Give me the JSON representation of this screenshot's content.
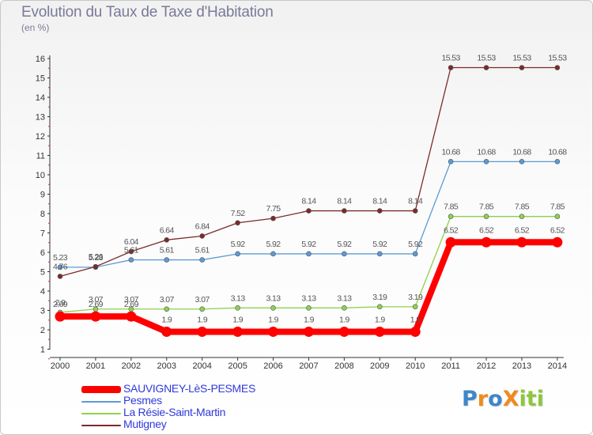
{
  "title": "Evolution du Taux de Taxe d'Habitation",
  "unit_label": "(en %)",
  "logo_text": "ProXiti",
  "colors": {
    "axis": "#333333",
    "grid": "#dddddd"
  },
  "chart_data": {
    "type": "line",
    "title": "Evolution du Taux de Taxe d'Habitation",
    "ylabel": "(en %)",
    "xlabel": "",
    "x": [
      "2000",
      "2001",
      "2002",
      "2003",
      "2004",
      "2005",
      "2006",
      "2007",
      "2008",
      "2009",
      "2010",
      "2011",
      "2012",
      "2013",
      "2014"
    ],
    "ylim": [
      0,
      16
    ],
    "yticks": [
      "1",
      "2",
      "3",
      "4",
      "5",
      "6",
      "7",
      "8",
      "9",
      "10",
      "11",
      "12",
      "13",
      "14",
      "15",
      "16"
    ],
    "grid": false,
    "legend_position": "bottom-left",
    "series": [
      {
        "name": "SAUVIGNEY-LèS-PESMES",
        "color": "#ff0000",
        "values": [
          2.69,
          2.69,
          2.69,
          1.9,
          1.9,
          1.9,
          1.9,
          1.9,
          1.9,
          1.9,
          1.9,
          6.52,
          6.52,
          6.52,
          6.52
        ],
        "labels": [
          "2.69",
          "2.69",
          "2.69",
          "1.9",
          "1.9",
          "1.9",
          "1.9",
          "1.9",
          "1.9",
          "1.9",
          "1.9",
          "6.52",
          "6.52",
          "6.52",
          "6.52"
        ]
      },
      {
        "name": "Pesmes",
        "color": "#5b9bd5",
        "values": [
          5.23,
          5.23,
          5.61,
          5.61,
          5.61,
          5.92,
          5.92,
          5.92,
          5.92,
          5.92,
          5.92,
          10.68,
          10.68,
          10.68,
          10.68
        ],
        "labels": [
          "5.23",
          "5.23",
          "5.61",
          "5.61",
          "5.61",
          "5.92",
          "5.92",
          "5.92",
          "5.92",
          "5.92",
          "5.92",
          "10.68",
          "10.68",
          "10.68",
          "10.68"
        ]
      },
      {
        "name": "La Résie-Saint-Martin",
        "color": "#8fd14f",
        "values": [
          2.9,
          3.07,
          3.07,
          3.07,
          3.07,
          3.13,
          3.13,
          3.13,
          3.13,
          3.19,
          3.19,
          7.85,
          7.85,
          7.85,
          7.85
        ],
        "labels": [
          "2.9",
          "3.07",
          "3.07",
          "3.07",
          "3.07",
          "3.13",
          "3.13",
          "3.13",
          "3.13",
          "3.19",
          "3.19",
          "7.85",
          "7.85",
          "7.85",
          "7.85"
        ]
      },
      {
        "name": "Mutigney",
        "color": "#7b2a2a",
        "values": [
          4.76,
          5.26,
          6.04,
          6.64,
          6.84,
          7.52,
          7.75,
          8.14,
          8.14,
          8.14,
          8.14,
          15.53,
          15.53,
          15.53,
          15.53
        ],
        "labels": [
          "4.76",
          "5.26",
          "6.04",
          "6.64",
          "6.84",
          "7.52",
          "7.75",
          "8.14",
          "8.14",
          "8.14",
          "8.14",
          "15.53",
          "15.53",
          "15.53",
          "15.53"
        ]
      }
    ]
  }
}
